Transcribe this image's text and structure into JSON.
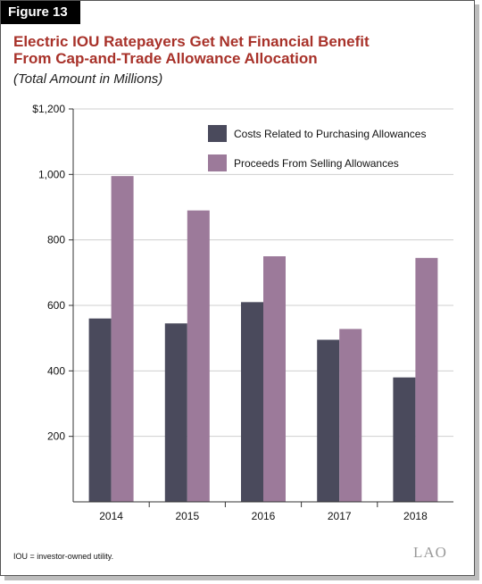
{
  "figure": {
    "label": "Figure 13",
    "title_line1": "Electric IOU Ratepayers Get Net Financial Benefit",
    "title_line2": "From Cap-and-Trade Allowance Allocation",
    "subtitle": "(Total Amount in Millions)",
    "footnote": "IOU = investor-owned utility.",
    "logo_text": "LAO"
  },
  "chart_data": {
    "type": "bar",
    "title": "Electric IOU Ratepayers Get Net Financial Benefit From Cap-and-Trade Allowance Allocation",
    "subtitle": "(Total Amount in Millions)",
    "categories": [
      "2014",
      "2015",
      "2016",
      "2017",
      "2018"
    ],
    "series": [
      {
        "name": "Costs Related to Purchasing Allowances",
        "values": [
          560,
          545,
          610,
          495,
          380
        ],
        "color": "#4a4a5c"
      },
      {
        "name": "Proceeds From Selling Allowances",
        "values": [
          995,
          890,
          750,
          528,
          745
        ],
        "color": "#9c7a9a"
      }
    ],
    "ylim": [
      0,
      1200
    ],
    "yticks": [
      200,
      400,
      600,
      800,
      1000,
      1200
    ],
    "ytick_labels": [
      "200",
      "400",
      "600",
      "800",
      "1,000",
      "$1,200"
    ],
    "grid": true,
    "legend_position": "top-right"
  }
}
